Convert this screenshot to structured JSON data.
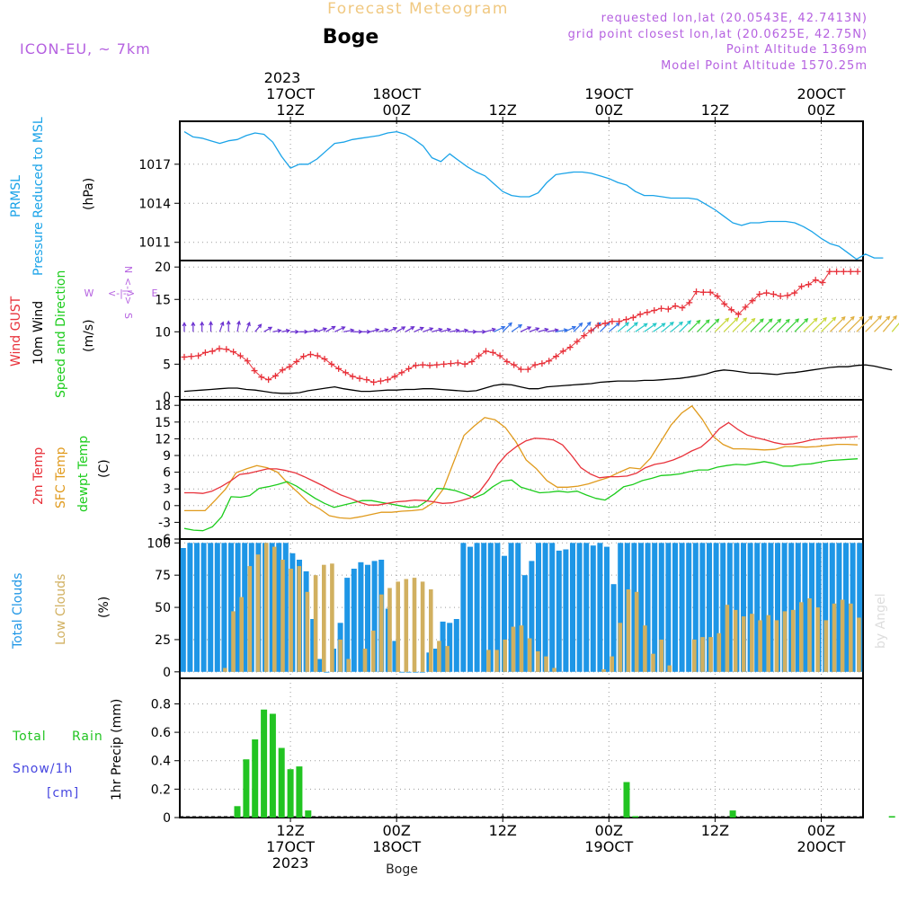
{
  "header": {
    "title": "Forecast Meteogram",
    "station": "Boge",
    "model": "ICON-EU, ~ 7km",
    "requested": "requested lon,lat (20.0543E, 42.7413N)",
    "gridpoint": "grid point closest lon,lat (20.0625E, 42.75N)",
    "point_alt": "Point Altitude 1369m",
    "model_alt": "Model Point Altitude 1570.25m",
    "footer_station": "Boge",
    "watermark": "by Angel"
  },
  "time_axis": {
    "top_year": "2023",
    "top_ticks": [
      {
        "i": 12,
        "l1": "17OCT",
        "l2": "12Z"
      },
      {
        "i": 24,
        "l1": "18OCT",
        "l2": "00Z"
      },
      {
        "i": 36,
        "l1": "",
        "l2": "12Z"
      },
      {
        "i": 48,
        "l1": "19OCT",
        "l2": "00Z"
      },
      {
        "i": 60,
        "l1": "",
        "l2": "12Z"
      },
      {
        "i": 72,
        "l1": "20OCT",
        "l2": "00Z"
      }
    ],
    "bottom_ticks": [
      {
        "i": 12,
        "l1": "12Z",
        "l2": "17OCT",
        "l3": "2023"
      },
      {
        "i": 24,
        "l1": "00Z",
        "l2": "18OCT",
        "l3": ""
      },
      {
        "i": 36,
        "l1": "12Z",
        "l2": "",
        "l3": ""
      },
      {
        "i": 48,
        "l1": "00Z",
        "l2": "19OCT",
        "l3": ""
      },
      {
        "i": 60,
        "l1": "12Z",
        "l2": "",
        "l3": ""
      },
      {
        "i": 72,
        "l1": "00Z",
        "l2": "20OCT",
        "l3": ""
      }
    ]
  },
  "panel_labels": {
    "p1": [
      "PRMSL",
      "Pressure Reduced to MSL",
      "(hPa)"
    ],
    "p2": [
      "Wind GUST",
      "10m Wind",
      "Speed and Direction",
      "(m/s)"
    ],
    "compass": {
      "n": "N",
      "e": "E",
      "s": "S",
      "w": "W",
      "ew": "<-|->",
      "ns": "<-|->"
    },
    "p3": [
      "2m Temp",
      "SFC Temp",
      "dewpt Temp",
      "(C)"
    ],
    "p4": [
      "Total Clouds",
      "Low Clouds",
      "(%)"
    ],
    "p5": [
      "Total",
      "Rain",
      "Snow/1h",
      "[cm]",
      "1hr Precip (mm)"
    ]
  },
  "colors": {
    "pressure": "#1aa3e8",
    "gust": "#e8313a",
    "wind": "#000000",
    "temp": "#e8313a",
    "sfc": "#e09a1c",
    "dewpt": "#1ccc1c",
    "total_clouds": "#1e96e6",
    "low_clouds": "#d1b060",
    "rain": "#22c422",
    "label_purple": "#b561e0",
    "label_snow": "#4646e0",
    "title_gold": "#f0c880"
  },
  "chart_data": [
    {
      "type": "line",
      "title": "PRMSL Pressure Reduced to MSL",
      "ylabel": "(hPa)",
      "ylim": [
        1009.6,
        1020.3
      ],
      "yticks": [
        1011,
        1014,
        1017
      ],
      "series": [
        {
          "name": "PRMSL",
          "values": [
            1019.5,
            1019.1,
            1019.0,
            1018.8,
            1018.6,
            1018.8,
            1018.9,
            1019.2,
            1019.4,
            1019.3,
            1018.7,
            1017.6,
            1016.7,
            1017.0,
            1017.0,
            1017.4,
            1018.0,
            1018.6,
            1018.7,
            1018.9,
            1019.0,
            1019.1,
            1019.2,
            1019.4,
            1019.5,
            1019.3,
            1018.9,
            1018.4,
            1017.5,
            1017.2,
            1017.8,
            1017.3,
            1016.8,
            1016.4,
            1016.1,
            1015.5,
            1014.9,
            1014.6,
            1014.5,
            1014.5,
            1014.8,
            1015.6,
            1016.2,
            1016.3,
            1016.4,
            1016.4,
            1016.3,
            1016.1,
            1015.9,
            1015.6,
            1015.4,
            1014.9,
            1014.6,
            1014.6,
            1014.5,
            1014.4,
            1014.4,
            1014.4,
            1014.3,
            1013.9,
            1013.5,
            1013.0,
            1012.5,
            1012.3,
            1012.5,
            1012.5,
            1012.6,
            1012.6,
            1012.6,
            1012.5,
            1012.2,
            1011.8,
            1011.3,
            1010.9,
            1010.7,
            1010.2,
            1009.7,
            1010.1,
            1009.8,
            1009.8
          ]
        }
      ]
    },
    {
      "type": "line",
      "title": "Wind GUST / 10m Wind Speed and Direction",
      "ylabel": "(m/s)",
      "ylim": [
        -0.5,
        21
      ],
      "yticks": [
        0,
        5,
        10,
        15,
        20
      ],
      "series": [
        {
          "name": "Wind GUST",
          "values": [
            6.1,
            6.2,
            6.3,
            6.8,
            7.0,
            7.4,
            7.3,
            6.9,
            6.3,
            5.5,
            4.0,
            3.0,
            2.6,
            3.2,
            4.1,
            4.6,
            5.4,
            6.2,
            6.5,
            6.3,
            5.8,
            5.0,
            4.3,
            3.7,
            3.1,
            2.8,
            2.6,
            2.2,
            2.4,
            2.6,
            3.1,
            3.7,
            4.3,
            4.8,
            4.9,
            4.8,
            4.9,
            5.0,
            5.1,
            5.2,
            5.0,
            5.4,
            6.3,
            7.0,
            6.8,
            6.3,
            5.4,
            4.9,
            4.2,
            4.2,
            4.9,
            5.1,
            5.5,
            6.2,
            7.0,
            7.6,
            8.5,
            9.4,
            10.2,
            11.0,
            11.3,
            11.6,
            11.6,
            11.9,
            12.2,
            12.7,
            13.0,
            13.3,
            13.6,
            13.5,
            14.0,
            13.7,
            14.5,
            16.2,
            16.1,
            16.1,
            15.5,
            14.3,
            13.4,
            12.7,
            13.8,
            14.8,
            15.8,
            16.0,
            15.8,
            15.5,
            15.6,
            16.0,
            17.0,
            17.3,
            18.0,
            17.6,
            19.3,
            19.3,
            19.3,
            19.3,
            19.3
          ]
        },
        {
          "name": "10m Wind",
          "values": [
            0.8,
            0.9,
            1.0,
            1.1,
            1.2,
            1.3,
            1.3,
            1.1,
            1.0,
            0.8,
            0.6,
            0.5,
            0.5,
            0.6,
            0.9,
            1.1,
            1.3,
            1.5,
            1.2,
            1.0,
            0.8,
            0.8,
            0.9,
            1.0,
            1.0,
            1.1,
            1.1,
            1.2,
            1.2,
            1.1,
            1.0,
            0.9,
            0.8,
            0.9,
            1.3,
            1.7,
            1.9,
            1.8,
            1.5,
            1.2,
            1.2,
            1.5,
            1.6,
            1.7,
            1.8,
            1.9,
            2.0,
            2.2,
            2.3,
            2.4,
            2.4,
            2.4,
            2.5,
            2.5,
            2.6,
            2.7,
            2.8,
            3.0,
            3.2,
            3.5,
            3.9,
            4.1,
            4.0,
            3.8,
            3.6,
            3.6,
            3.5,
            3.4,
            3.6,
            3.7,
            3.9,
            4.1,
            4.3,
            4.5,
            4.6,
            4.6,
            4.8,
            4.9,
            4.7,
            4.4,
            4.1
          ]
        }
      ],
      "wind_dir_from_deg": [
        180,
        180,
        180,
        180,
        200,
        180,
        190,
        200,
        220,
        240,
        260,
        260,
        270,
        270,
        260,
        250,
        240,
        245,
        260,
        270,
        270,
        255,
        255,
        245,
        240,
        240,
        245,
        250,
        255,
        255,
        260,
        260,
        270,
        270,
        255,
        245,
        225,
        235,
        245,
        250,
        255,
        260,
        260,
        245,
        225,
        220,
        225,
        225,
        230,
        230,
        230,
        235,
        235,
        235,
        230,
        230,
        225,
        225,
        225,
        225,
        225,
        225,
        225,
        225,
        225,
        225,
        225,
        225,
        225,
        225,
        225,
        225,
        225,
        225,
        225,
        225,
        225,
        225,
        225,
        220,
        220
      ]
    },
    {
      "type": "line",
      "title": "2m Temp / SFC Temp / dewpt Temp",
      "ylabel": "(C)",
      "ylim": [
        -6,
        19
      ],
      "yticks": [
        -6,
        -3,
        0,
        3,
        6,
        9,
        12,
        15,
        18
      ],
      "series": [
        {
          "name": "2m Temp",
          "values": [
            2.3,
            2.3,
            2.2,
            2.6,
            3.4,
            4.4,
            5.6,
            5.8,
            6.2,
            6.6,
            6.6,
            6.3,
            5.9,
            5.2,
            4.4,
            3.6,
            2.7,
            1.9,
            1.3,
            0.6,
            0.1,
            0.1,
            0.4,
            0.7,
            0.8,
            1.0,
            0.9,
            0.7,
            0.4,
            0.5,
            0.9,
            1.4,
            2.5,
            4.7,
            7.4,
            9.3,
            10.6,
            11.6,
            12.1,
            12.0,
            11.8,
            10.9,
            9.0,
            6.8,
            5.7,
            5.0,
            5.2,
            5.2,
            5.3,
            5.8,
            6.8,
            7.4,
            7.7,
            8.2,
            8.9,
            9.8,
            10.5,
            11.9,
            13.8,
            14.9,
            13.7,
            12.7,
            12.2,
            11.8,
            11.3,
            11.0,
            11.1,
            11.4,
            11.8,
            12.0,
            12.1,
            12.2,
            12.3,
            12.4
          ]
        },
        {
          "name": "SFC Temp",
          "values": [
            -0.9,
            -0.9,
            -0.9,
            1.0,
            3.0,
            5.9,
            6.6,
            7.2,
            6.8,
            6.0,
            4.0,
            2.3,
            0.5,
            -0.5,
            -1.8,
            -2.2,
            -2.3,
            -2.0,
            -1.6,
            -1.2,
            -1.2,
            -1.0,
            -0.9,
            -0.7,
            0.5,
            3.0,
            7.8,
            12.6,
            14.3,
            15.8,
            15.4,
            14.0,
            11.5,
            8.2,
            6.6,
            4.5,
            3.3,
            3.3,
            3.5,
            3.9,
            4.5,
            5.1,
            6.0,
            6.8,
            6.6,
            8.5,
            11.5,
            14.5,
            16.6,
            17.9,
            15.5,
            12.5,
            11.0,
            10.2,
            10.2,
            10.1,
            10.0,
            10.1,
            10.6,
            10.6,
            10.5,
            10.6,
            10.8,
            11.0,
            11.0,
            10.9
          ]
        },
        {
          "name": "dewpt Temp",
          "values": [
            -4.1,
            -4.4,
            -4.5,
            -3.8,
            -2.0,
            1.6,
            1.5,
            1.8,
            3.1,
            3.4,
            3.8,
            4.3,
            3.5,
            2.4,
            1.3,
            0.4,
            -0.3,
            0.1,
            0.5,
            0.9,
            0.9,
            0.6,
            0.3,
            0.0,
            -0.3,
            -0.2,
            0.9,
            3.1,
            3.0,
            2.7,
            2.1,
            1.4,
            2.1,
            3.4,
            4.4,
            4.6,
            3.3,
            2.8,
            2.3,
            2.4,
            2.6,
            2.4,
            2.6,
            1.9,
            1.3,
            1.0,
            2.1,
            3.4,
            3.8,
            4.5,
            4.9,
            5.4,
            5.5,
            5.7,
            6.1,
            6.4,
            6.4,
            6.9,
            7.2,
            7.4,
            7.3,
            7.6,
            7.9,
            7.6,
            7.1,
            7.1,
            7.4,
            7.5,
            7.8,
            8.1,
            8.2,
            8.3,
            8.4
          ]
        }
      ]
    },
    {
      "type": "bar",
      "title": "Total Clouds / Low Clouds",
      "ylabel": "(%)",
      "ylim": [
        -5,
        103
      ],
      "yticks": [
        0,
        25,
        50,
        75,
        100
      ],
      "series": [
        {
          "name": "Total Clouds",
          "values": [
            96,
            100,
            100,
            100,
            100,
            100,
            100,
            100,
            100,
            100,
            100,
            100,
            100,
            100,
            100,
            100,
            92,
            87,
            78,
            41,
            10,
            0,
            18,
            38,
            73,
            80,
            85,
            83,
            86,
            87,
            49,
            24,
            0,
            0,
            0,
            0,
            15,
            18,
            39,
            38,
            41,
            100,
            97,
            100,
            100,
            100,
            100,
            90,
            100,
            100,
            75,
            86,
            100,
            100,
            100,
            94,
            95,
            100,
            100,
            100,
            98,
            100,
            97,
            68,
            100,
            100,
            100,
            100,
            100,
            100,
            100,
            100,
            100,
            100,
            100,
            100,
            100,
            100,
            100,
            100,
            100,
            100,
            100,
            100,
            100,
            100,
            100,
            100,
            100,
            100,
            100,
            100,
            100,
            100,
            100,
            100,
            100,
            100,
            100,
            100
          ]
        },
        {
          "name": "Low Clouds",
          "values": [
            0,
            0,
            0,
            0,
            0,
            3,
            47,
            58,
            82,
            91,
            100,
            97,
            87,
            80,
            82,
            62,
            75,
            83,
            84,
            25,
            10,
            0,
            18,
            32,
            60,
            65,
            70,
            72,
            73,
            70,
            64,
            24,
            20,
            0,
            0,
            0,
            0,
            17,
            17,
            25,
            35,
            36,
            26,
            16,
            12,
            3,
            0,
            0,
            0,
            0,
            0,
            2,
            12,
            38,
            64,
            62,
            36,
            14,
            25,
            5,
            0,
            0,
            25,
            27,
            27,
            30,
            52,
            48,
            43,
            45,
            40,
            44,
            40,
            47,
            48,
            54,
            57,
            50,
            40,
            53,
            56,
            53,
            42
          ]
        }
      ]
    },
    {
      "type": "bar",
      "title": "1hr Precip (mm)",
      "ylabel": "1hr Precip (mm)",
      "ylim": [
        0,
        0.98
      ],
      "yticks": [
        0,
        0.2,
        0.4,
        0.6,
        0.8
      ],
      "series": [
        {
          "name": "Total Rain",
          "values": [
            0,
            0,
            0,
            0,
            0,
            0,
            0.08,
            0.41,
            0.55,
            0.76,
            0.73,
            0.49,
            0.34,
            0.36,
            0.05,
            0,
            0,
            0,
            0,
            0,
            0,
            0,
            0,
            0,
            0,
            0,
            0,
            0,
            0,
            0,
            0,
            0,
            0,
            0,
            0,
            0,
            0,
            0,
            0,
            0,
            0,
            0,
            0,
            0,
            0,
            0,
            0,
            0,
            0,
            0,
            0.25,
            0.01,
            0,
            0,
            0,
            0,
            0,
            0,
            0,
            0,
            0,
            0,
            0.05,
            0,
            0,
            0,
            0,
            0,
            0,
            0,
            0,
            0,
            0,
            0,
            0,
            0,
            0,
            0,
            0,
            0,
            0.01
          ]
        }
      ]
    }
  ]
}
